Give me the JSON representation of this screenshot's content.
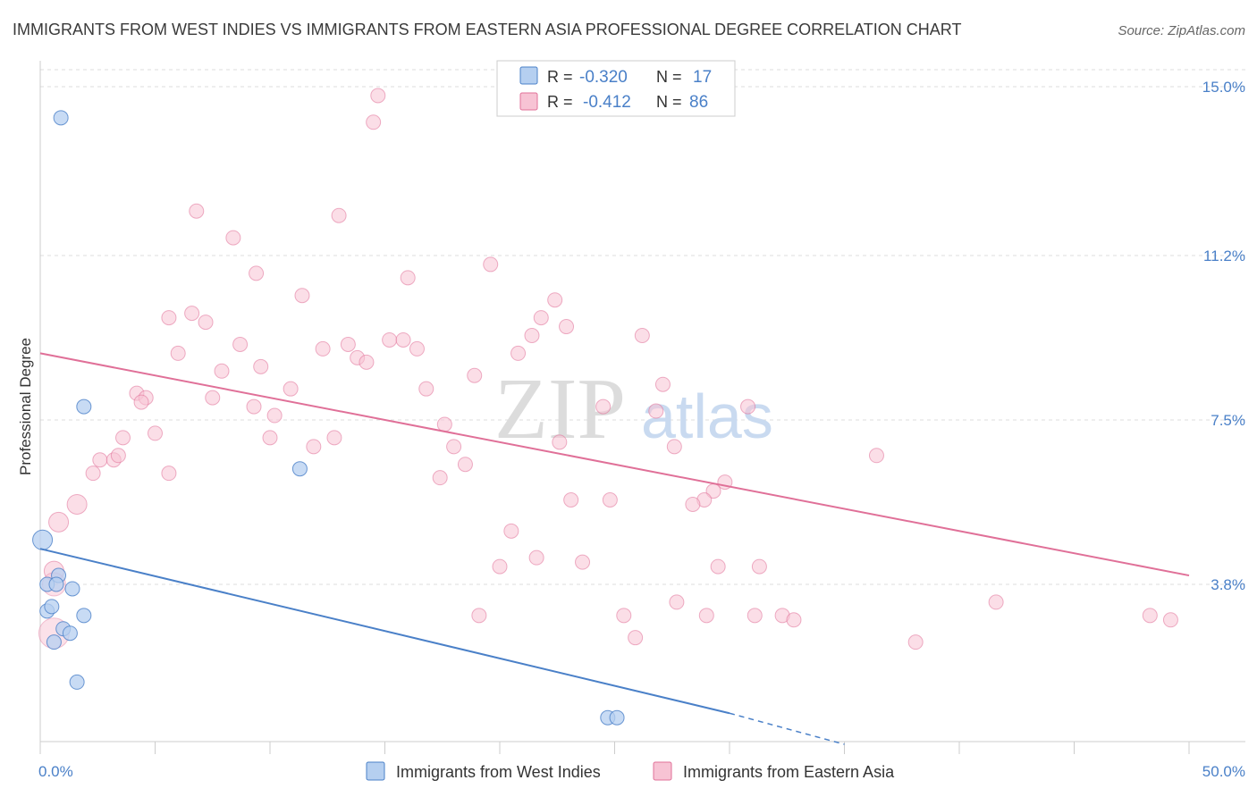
{
  "title": "IMMIGRANTS FROM WEST INDIES VS IMMIGRANTS FROM EASTERN ASIA PROFESSIONAL DEGREE CORRELATION CHART",
  "source": "Source: ZipAtlas.com",
  "watermark": {
    "zip": "ZIP",
    "atlas": "atlas"
  },
  "legend": {
    "rows": [
      {
        "r_label": "R =",
        "r_value": "-0.320",
        "n_label": "N =",
        "n_value": "17"
      },
      {
        "r_label": "R =",
        "r_value": "-0.412",
        "n_label": "N =",
        "n_value": "86"
      }
    ]
  },
  "chart_data": {
    "type": "scatter",
    "title": "IMMIGRANTS FROM WEST INDIES VS IMMIGRANTS FROM EASTERN ASIA PROFESSIONAL DEGREE CORRELATION CHART",
    "xlabel": "",
    "ylabel": "Professional Degree",
    "xlim": [
      0,
      50
    ],
    "ylim": [
      0,
      15.5
    ],
    "x_tick_labels": [
      "0.0%",
      "50.0%"
    ],
    "y_ticks": [
      3.8,
      7.5,
      11.2,
      15.0
    ],
    "y_tick_labels": [
      "3.8%",
      "7.5%",
      "11.2%",
      "15.0%"
    ],
    "colors": {
      "west_indies": "#4a80c8",
      "west_indies_fill": "#b5cff0",
      "eastern_asia": "#e07098",
      "eastern_asia_fill": "#f7c3d4",
      "grid": "#dddddd",
      "axis": "#cccccc"
    },
    "series": [
      {
        "name": "Immigrants from West Indies",
        "R": -0.32,
        "N": 17,
        "points": [
          [
            0.9,
            14.3
          ],
          [
            1.9,
            7.8
          ],
          [
            11.3,
            6.4
          ],
          [
            0.1,
            4.8
          ],
          [
            0.8,
            4.0
          ],
          [
            0.3,
            3.8
          ],
          [
            0.7,
            3.8
          ],
          [
            1.4,
            3.7
          ],
          [
            0.3,
            3.2
          ],
          [
            0.5,
            3.3
          ],
          [
            1.9,
            3.1
          ],
          [
            1.0,
            2.8
          ],
          [
            1.3,
            2.7
          ],
          [
            0.6,
            2.5
          ],
          [
            1.6,
            1.6
          ],
          [
            24.7,
            0.8
          ],
          [
            25.1,
            0.8
          ]
        ],
        "trend": {
          "x": [
            0,
            30
          ],
          "y": [
            4.6,
            0.9
          ],
          "dashed_to": [
            35,
            0.2
          ]
        }
      },
      {
        "name": "Immigrants from Eastern Asia",
        "R": -0.412,
        "N": 86,
        "points": [
          [
            14.7,
            14.8
          ],
          [
            14.5,
            14.2
          ],
          [
            6.8,
            12.2
          ],
          [
            13.0,
            12.1
          ],
          [
            8.4,
            11.6
          ],
          [
            9.4,
            10.8
          ],
          [
            19.6,
            11.0
          ],
          [
            16.0,
            10.7
          ],
          [
            11.4,
            10.3
          ],
          [
            22.4,
            10.2
          ],
          [
            5.6,
            9.8
          ],
          [
            6.6,
            9.9
          ],
          [
            7.2,
            9.7
          ],
          [
            21.8,
            9.8
          ],
          [
            22.9,
            9.6
          ],
          [
            6.0,
            9.0
          ],
          [
            8.7,
            9.2
          ],
          [
            12.3,
            9.1
          ],
          [
            13.4,
            9.2
          ],
          [
            15.2,
            9.3
          ],
          [
            15.8,
            9.3
          ],
          [
            16.4,
            9.1
          ],
          [
            13.8,
            8.9
          ],
          [
            14.2,
            8.8
          ],
          [
            20.8,
            9.0
          ],
          [
            21.4,
            9.4
          ],
          [
            26.2,
            9.4
          ],
          [
            9.6,
            8.7
          ],
          [
            7.9,
            8.6
          ],
          [
            18.9,
            8.5
          ],
          [
            4.2,
            8.1
          ],
          [
            4.6,
            8.0
          ],
          [
            7.5,
            8.0
          ],
          [
            10.9,
            8.2
          ],
          [
            16.8,
            8.2
          ],
          [
            27.1,
            8.3
          ],
          [
            4.4,
            7.9
          ],
          [
            9.3,
            7.8
          ],
          [
            10.2,
            7.6
          ],
          [
            24.5,
            7.8
          ],
          [
            26.8,
            7.7
          ],
          [
            30.8,
            7.8
          ],
          [
            3.6,
            7.1
          ],
          [
            5.0,
            7.2
          ],
          [
            10.0,
            7.1
          ],
          [
            12.8,
            7.1
          ],
          [
            17.6,
            7.4
          ],
          [
            11.9,
            6.9
          ],
          [
            18.0,
            6.9
          ],
          [
            22.6,
            7.0
          ],
          [
            27.6,
            6.9
          ],
          [
            2.6,
            6.6
          ],
          [
            3.2,
            6.6
          ],
          [
            3.4,
            6.7
          ],
          [
            18.5,
            6.5
          ],
          [
            36.4,
            6.7
          ],
          [
            2.3,
            6.3
          ],
          [
            5.6,
            6.3
          ],
          [
            17.4,
            6.2
          ],
          [
            29.8,
            6.1
          ],
          [
            29.3,
            5.9
          ],
          [
            1.6,
            5.6
          ],
          [
            23.1,
            5.7
          ],
          [
            24.8,
            5.7
          ],
          [
            28.9,
            5.7
          ],
          [
            28.4,
            5.6
          ],
          [
            0.8,
            5.2
          ],
          [
            20.5,
            5.0
          ],
          [
            21.6,
            4.4
          ],
          [
            20.0,
            4.2
          ],
          [
            23.6,
            4.3
          ],
          [
            29.5,
            4.2
          ],
          [
            31.3,
            4.2
          ],
          [
            0.6,
            4.1
          ],
          [
            27.7,
            3.4
          ],
          [
            19.1,
            3.1
          ],
          [
            25.4,
            3.1
          ],
          [
            29.0,
            3.1
          ],
          [
            31.1,
            3.1
          ],
          [
            32.3,
            3.1
          ],
          [
            41.6,
            3.4
          ],
          [
            48.3,
            3.1
          ],
          [
            49.2,
            3.0
          ],
          [
            32.8,
            3.0
          ],
          [
            25.9,
            2.6
          ],
          [
            38.1,
            2.5
          ]
        ],
        "trend": {
          "x": [
            0,
            50
          ],
          "y": [
            9.0,
            4.0
          ]
        }
      }
    ]
  },
  "bottom_legend": [
    {
      "label": "Immigrants from West Indies"
    },
    {
      "label": "Immigrants from Eastern Asia"
    }
  ]
}
